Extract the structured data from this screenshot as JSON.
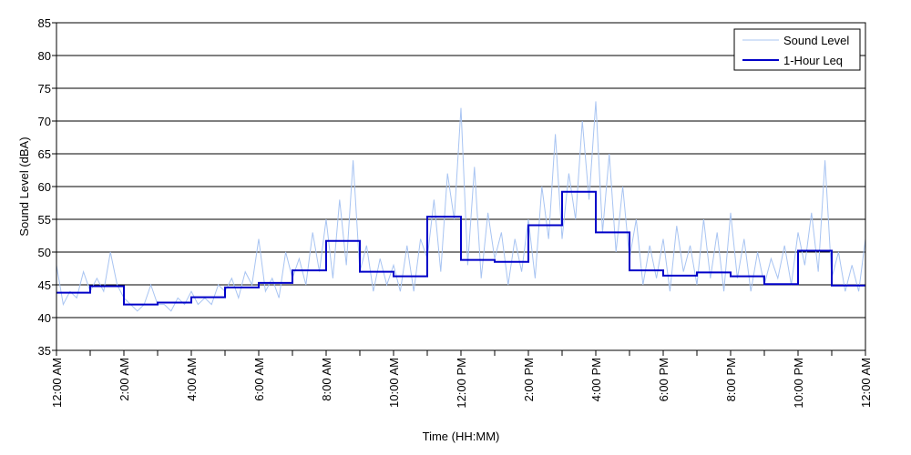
{
  "chart_data": {
    "type": "line",
    "xlabel": "Time (HH:MM)",
    "ylabel": "Sound Level (dBA)",
    "ylim": [
      35,
      85
    ],
    "yticks": [
      35,
      40,
      45,
      50,
      55,
      60,
      65,
      70,
      75,
      80,
      85
    ],
    "xlim_hours": [
      0,
      24
    ],
    "xtick_labels": [
      "12:00 AM",
      "2:00 AM",
      "4:00 AM",
      "6:00 AM",
      "8:00 AM",
      "10:00 AM",
      "12:00 PM",
      "2:00 PM",
      "4:00 PM",
      "6:00 PM",
      "8:00 PM",
      "10:00 PM",
      "12:00 AM"
    ],
    "grid": "horizontal",
    "legend_position": "top-right",
    "series": [
      {
        "name": "Sound Level",
        "color": "#a8c4f2",
        "style": "thin-line",
        "x_hours": [
          0.0,
          0.2,
          0.4,
          0.6,
          0.8,
          1.0,
          1.2,
          1.4,
          1.6,
          1.8,
          2.0,
          2.2,
          2.4,
          2.6,
          2.8,
          3.0,
          3.2,
          3.4,
          3.6,
          3.8,
          4.0,
          4.2,
          4.4,
          4.6,
          4.8,
          5.0,
          5.2,
          5.4,
          5.6,
          5.8,
          6.0,
          6.2,
          6.4,
          6.6,
          6.8,
          7.0,
          7.2,
          7.4,
          7.6,
          7.8,
          8.0,
          8.2,
          8.4,
          8.6,
          8.8,
          9.0,
          9.2,
          9.4,
          9.6,
          9.8,
          10.0,
          10.2,
          10.4,
          10.6,
          10.8,
          11.0,
          11.2,
          11.4,
          11.6,
          11.8,
          12.0,
          12.2,
          12.4,
          12.6,
          12.8,
          13.0,
          13.2,
          13.4,
          13.6,
          13.8,
          14.0,
          14.2,
          14.4,
          14.6,
          14.8,
          15.0,
          15.2,
          15.4,
          15.6,
          15.8,
          16.0,
          16.2,
          16.4,
          16.6,
          16.8,
          17.0,
          17.2,
          17.4,
          17.6,
          17.8,
          18.0,
          18.2,
          18.4,
          18.6,
          18.8,
          19.0,
          19.2,
          19.4,
          19.6,
          19.8,
          20.0,
          20.2,
          20.4,
          20.6,
          20.8,
          21.0,
          21.2,
          21.4,
          21.6,
          21.8,
          22.0,
          22.2,
          22.4,
          22.6,
          22.8,
          23.0,
          23.2,
          23.4,
          23.6,
          23.8,
          24.0
        ],
        "values": [
          48,
          42,
          44,
          43,
          47,
          44,
          46,
          44,
          50,
          45,
          43,
          42,
          41,
          42,
          45,
          42,
          42,
          41,
          43,
          42,
          44,
          42,
          43,
          42,
          45,
          44,
          46,
          43,
          47,
          45,
          52,
          44,
          46,
          43,
          50,
          46,
          49,
          45,
          53,
          47,
          55,
          46,
          58,
          48,
          64,
          47,
          51,
          44,
          49,
          45,
          48,
          44,
          51,
          44,
          52,
          49,
          58,
          47,
          62,
          55,
          72,
          48,
          63,
          46,
          56,
          49,
          53,
          45,
          52,
          47,
          55,
          46,
          60,
          52,
          68,
          52,
          62,
          55,
          70,
          58,
          73,
          53,
          65,
          50,
          60,
          49,
          55,
          45,
          51,
          46,
          52,
          44,
          54,
          47,
          51,
          45,
          55,
          46,
          53,
          44,
          56,
          46,
          52,
          44,
          50,
          45,
          49,
          46,
          51,
          45,
          53,
          48,
          56,
          47,
          64,
          46,
          50,
          44,
          48,
          44,
          52
        ]
      },
      {
        "name": "1-Hour Leq",
        "color": "#0000c8",
        "style": "step",
        "hourly_values": [
          43.8,
          44.8,
          42.0,
          42.3,
          43.1,
          44.6,
          45.3,
          47.2,
          51.7,
          47.0,
          46.3,
          55.4,
          48.8,
          48.5,
          54.1,
          59.2,
          53.0,
          47.2,
          46.4,
          46.9,
          46.3,
          45.1,
          50.2,
          44.9
        ]
      }
    ]
  }
}
